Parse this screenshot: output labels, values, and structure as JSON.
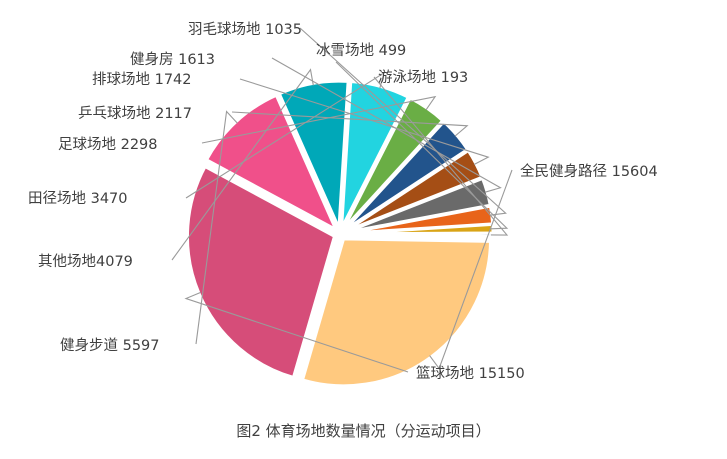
{
  "caption": "图2 体育场地数量情况（分运动项目）",
  "chart_data": {
    "type": "pie",
    "title": "",
    "slices": [
      {
        "label": "全民健身路径",
        "value": 15604,
        "color": "#FFC97F"
      },
      {
        "label": "篮球场地",
        "value": 15150,
        "color": "#D64D79"
      },
      {
        "label": "健身步道",
        "value": 5597,
        "color": "#F0508A"
      },
      {
        "label": "其他场地",
        "value": 4079,
        "color": "#00A8B8"
      },
      {
        "label": "田径场地",
        "value": 3470,
        "color": "#22D4E0"
      },
      {
        "label": "足球场地",
        "value": 2298,
        "color": "#6AAE45"
      },
      {
        "label": "乒乓球场地",
        "value": 2117,
        "color": "#22548C"
      },
      {
        "label": "排球场地",
        "value": 1742,
        "color": "#A54E15"
      },
      {
        "label": "健身房",
        "value": 1613,
        "color": "#6A6A6A"
      },
      {
        "label": "羽毛球场地",
        "value": 1035,
        "color": "#E8641A"
      },
      {
        "label": "冰雪场地",
        "value": 499,
        "color": "#D9A416"
      },
      {
        "label": "游泳场地",
        "value": 193,
        "color": "#7FA6D9"
      }
    ],
    "value_labels": [
      "全民健身路径 15604",
      "篮球场地 15150",
      "健身步道 5597",
      "其他场地4079",
      "田径场地 3470",
      "足球场地 2298",
      "乒乓球场地 2117",
      "排球场地 1742",
      "健身房 1613",
      "羽毛球场地 1035",
      "冰雪场地 499",
      "游泳场地 193"
    ]
  }
}
